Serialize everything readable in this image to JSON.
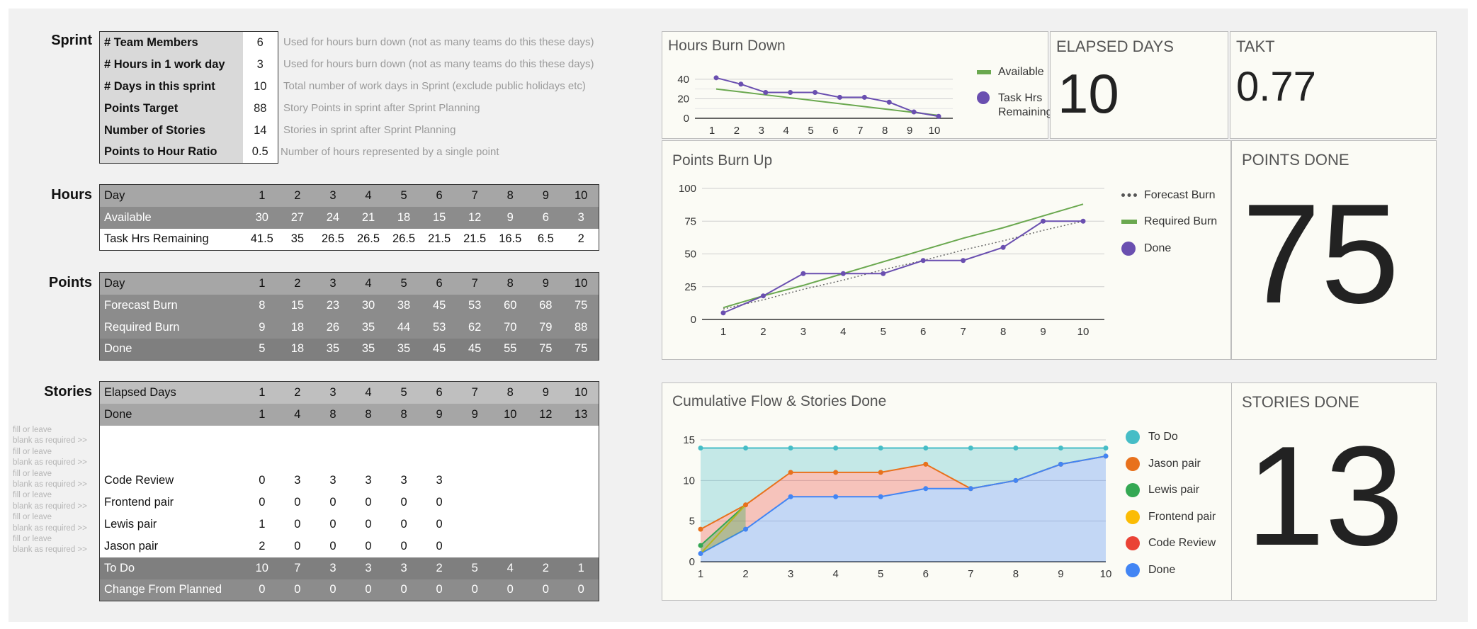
{
  "sections": {
    "sprint": "Sprint",
    "hours": "Hours",
    "points": "Points",
    "stories": "Stories"
  },
  "sprint": {
    "rows": [
      {
        "label": "# Team Members",
        "value": "6",
        "note": "Used for hours burn down (not as many teams do this these days)"
      },
      {
        "label": "# Hours in 1 work day",
        "value": "3",
        "note": "Used for hours burn down (not as many teams do this these days)"
      },
      {
        "label": "# Days in this sprint",
        "value": "10",
        "note": "Total number of work days in Sprint (exclude public holidays etc)"
      },
      {
        "label": "Points Target",
        "value": "88",
        "note": "Story Points in sprint after Sprint Planning"
      },
      {
        "label": "Number of Stories",
        "value": "14",
        "note": "Stories in sprint after Sprint Planning"
      },
      {
        "label": "Points to Hour Ratio",
        "value": "0.5",
        "note": "Number of hours represented by a single point"
      }
    ]
  },
  "hours_table": {
    "rows": [
      {
        "label": "Day",
        "values": [
          "1",
          "2",
          "3",
          "4",
          "5",
          "6",
          "7",
          "8",
          "9",
          "10"
        ]
      },
      {
        "label": "Available",
        "values": [
          "30",
          "27",
          "24",
          "21",
          "18",
          "15",
          "12",
          "9",
          "6",
          "3"
        ]
      },
      {
        "label": "Task Hrs Remaining",
        "values": [
          "41.5",
          "35",
          "26.5",
          "26.5",
          "26.5",
          "21.5",
          "21.5",
          "16.5",
          "6.5",
          "2"
        ]
      }
    ]
  },
  "points_table": {
    "rows": [
      {
        "label": "Day",
        "values": [
          "1",
          "2",
          "3",
          "4",
          "5",
          "6",
          "7",
          "8",
          "9",
          "10"
        ]
      },
      {
        "label": "Forecast Burn",
        "values": [
          "8",
          "15",
          "23",
          "30",
          "38",
          "45",
          "53",
          "60",
          "68",
          "75"
        ]
      },
      {
        "label": "Required Burn",
        "values": [
          "9",
          "18",
          "26",
          "35",
          "44",
          "53",
          "62",
          "70",
          "79",
          "88"
        ]
      },
      {
        "label": "Done",
        "values": [
          "5",
          "18",
          "35",
          "35",
          "35",
          "45",
          "45",
          "55",
          "75",
          "75"
        ]
      }
    ]
  },
  "stories_table": {
    "header": [
      {
        "label": "Elapsed Days",
        "values": [
          "1",
          "2",
          "3",
          "4",
          "5",
          "6",
          "7",
          "8",
          "9",
          "10"
        ]
      },
      {
        "label": "Done",
        "values": [
          "1",
          "4",
          "8",
          "8",
          "8",
          "9",
          "9",
          "10",
          "12",
          "13"
        ]
      }
    ],
    "body": [
      {
        "label": "",
        "values": [
          "",
          "",
          "",
          "",
          "",
          "",
          "",
          "",
          "",
          ""
        ]
      },
      {
        "label": "",
        "values": [
          "",
          "",
          "",
          "",
          "",
          "",
          "",
          "",
          "",
          ""
        ]
      },
      {
        "label": "Code Review",
        "values": [
          "0",
          "3",
          "3",
          "3",
          "3",
          "3",
          "",
          "",
          "",
          ""
        ]
      },
      {
        "label": "Frontend pair",
        "values": [
          "0",
          "0",
          "0",
          "0",
          "0",
          "0",
          "",
          "",
          "",
          ""
        ]
      },
      {
        "label": "Lewis pair",
        "values": [
          "1",
          "0",
          "0",
          "0",
          "0",
          "0",
          "",
          "",
          "",
          ""
        ]
      },
      {
        "label": "Jason pair",
        "values": [
          "2",
          "0",
          "0",
          "0",
          "0",
          "0",
          "",
          "",
          "",
          ""
        ]
      }
    ],
    "footer": [
      {
        "label": "To Do",
        "values": [
          "10",
          "7",
          "3",
          "3",
          "3",
          "2",
          "5",
          "4",
          "2",
          "1"
        ]
      },
      {
        "label": "Change From Planned",
        "values": [
          "0",
          "0",
          "0",
          "0",
          "0",
          "0",
          "0",
          "0",
          "0",
          "0"
        ]
      }
    ]
  },
  "side_notes": [
    "fill or leave",
    "blank as required >>",
    "fill or leave",
    "blank as required >>",
    "fill or leave",
    "blank as required >>",
    "fill or leave",
    "blank as required >>",
    "fill or leave",
    "blank as required >>",
    "fill or leave",
    "blank as required >>"
  ],
  "kpis": {
    "elapsed_days": {
      "label": "ELAPSED DAYS",
      "value": "10"
    },
    "takt": {
      "label": "TAKT",
      "value": "0.77"
    },
    "points_done": {
      "label": "POINTS DONE",
      "value": "75"
    },
    "stories_done": {
      "label": "STORIES DONE",
      "value": "13"
    }
  },
  "colors": {
    "purple": "#6a4fb0",
    "green": "#6aa84f",
    "teal": "#46bdc6",
    "orange": "#e8711c",
    "greenbright": "#34a853",
    "yellow": "#fbbc04",
    "red": "#ea4335",
    "blue": "#4285f4"
  },
  "chart_data": [
    {
      "type": "line",
      "title": "Hours Burn Down",
      "x": [
        1,
        2,
        3,
        4,
        5,
        6,
        7,
        8,
        9,
        10
      ],
      "ylim": [
        0,
        45
      ],
      "yticks": [
        0,
        20,
        40
      ],
      "series": [
        {
          "name": "Available",
          "values": [
            30,
            27,
            24,
            21,
            18,
            15,
            12,
            9,
            6,
            3
          ]
        },
        {
          "name": "Task Hrs Remaining",
          "values": [
            41.5,
            35,
            26.5,
            26.5,
            26.5,
            21.5,
            21.5,
            16.5,
            6.5,
            2
          ]
        }
      ]
    },
    {
      "type": "line",
      "title": "Points Burn Up",
      "x": [
        1,
        2,
        3,
        4,
        5,
        6,
        7,
        8,
        9,
        10
      ],
      "ylim": [
        0,
        100
      ],
      "yticks": [
        0,
        25,
        50,
        75,
        100
      ],
      "series": [
        {
          "name": "Forecast Burn",
          "values": [
            8,
            15,
            23,
            30,
            38,
            45,
            53,
            60,
            68,
            75
          ]
        },
        {
          "name": "Required Burn",
          "values": [
            9,
            18,
            26,
            35,
            44,
            53,
            62,
            70,
            79,
            88
          ]
        },
        {
          "name": "Done",
          "values": [
            5,
            18,
            35,
            35,
            35,
            45,
            45,
            55,
            75,
            75
          ]
        }
      ]
    },
    {
      "type": "area",
      "title": "Cumulative Flow & Stories Done",
      "x": [
        1,
        2,
        3,
        4,
        5,
        6,
        7,
        8,
        9,
        10
      ],
      "ylim": [
        0,
        15
      ],
      "yticks": [
        0,
        5,
        10,
        15
      ],
      "series": [
        {
          "name": "To Do",
          "values": [
            14,
            14,
            14,
            14,
            14,
            14,
            14,
            14,
            14,
            14
          ]
        },
        {
          "name": "Jason pair",
          "values": [
            4,
            7,
            11,
            11,
            11,
            12,
            9,
            10,
            12,
            13
          ]
        },
        {
          "name": "Lewis pair",
          "values": [
            2,
            7,
            null,
            null,
            null,
            null,
            null,
            null,
            null,
            null
          ]
        },
        {
          "name": "Frontend pair",
          "values": [
            1,
            7,
            null,
            null,
            null,
            null,
            null,
            null,
            null,
            null
          ]
        },
        {
          "name": "Code Review",
          "values": [
            1,
            7,
            11,
            11,
            11,
            12,
            9,
            10,
            12,
            13
          ]
        },
        {
          "name": "Done",
          "values": [
            1,
            4,
            8,
            8,
            8,
            9,
            9,
            10,
            12,
            13
          ]
        }
      ]
    }
  ]
}
